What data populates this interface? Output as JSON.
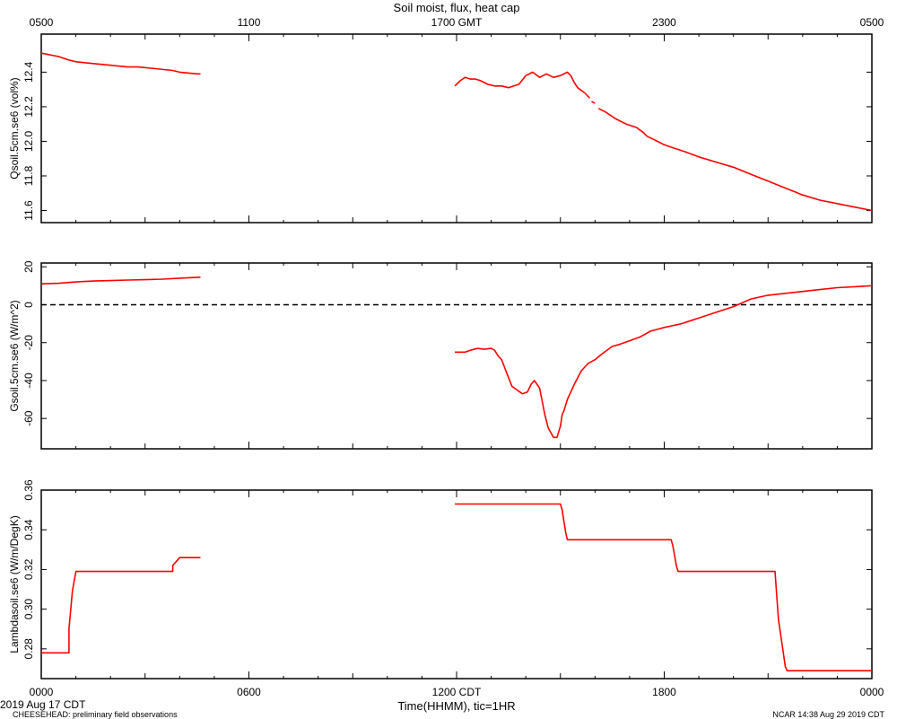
{
  "title": "Soil moist, flux, heat cap",
  "top_axis": {
    "ticks": [
      {
        "hour": 0,
        "label": "0500"
      },
      {
        "hour": 6,
        "label": "1100"
      },
      {
        "hour": 12,
        "label": "1700 GMT"
      },
      {
        "hour": 18,
        "label": "2300"
      },
      {
        "hour": 24,
        "label": "0500"
      }
    ]
  },
  "bottom_axis": {
    "ticks": [
      {
        "hour": 0,
        "label": "0000"
      },
      {
        "hour": 6,
        "label": "0600"
      },
      {
        "hour": 12,
        "label": "1200 CDT"
      },
      {
        "hour": 18,
        "label": "1800"
      },
      {
        "hour": 24,
        "label": "0000"
      }
    ],
    "xlabel": "Time(HHMM), tic=1HR",
    "date_label": "2019 Aug 17 CDT"
  },
  "footer": {
    "left": "CHEESEHEAD: preliminary field observations",
    "right": "NCAR 14:38 Aug 29 2019 CDT"
  },
  "colors": {
    "series": "#ff0000",
    "axis": "#000000",
    "zero_line": "#000000"
  },
  "chart_data": [
    {
      "type": "line",
      "ylabel": "Qsoil.5cm.se6 (vol%)",
      "xlim": [
        0,
        24
      ],
      "ylim": [
        11.53,
        12.62
      ],
      "yticks": [
        11.6,
        11.8,
        12.0,
        12.2,
        12.4
      ],
      "ytick_labels": [
        "11.6",
        "11.8",
        "12.0",
        "12.2",
        "12.4"
      ],
      "segments": [
        {
          "x": [
            0,
            0.5,
            0.8,
            1.0,
            1.5,
            2.0,
            2.5,
            2.8,
            3.3,
            3.8,
            4.0,
            4.5,
            4.6
          ],
          "y": [
            12.51,
            12.49,
            12.47,
            12.46,
            12.45,
            12.44,
            12.43,
            12.43,
            12.42,
            12.41,
            12.4,
            12.39,
            12.39
          ]
        },
        {
          "x": [
            11.95,
            12.1,
            12.25,
            12.4,
            12.55,
            12.7,
            12.9,
            13.1,
            13.3,
            13.5,
            13.65,
            13.8,
            14.0,
            14.2,
            14.4,
            14.6,
            14.8,
            15.0,
            15.1,
            15.2,
            15.3,
            15.4,
            15.5,
            15.7
          ],
          "y": [
            12.32,
            12.35,
            12.37,
            12.36,
            12.36,
            12.35,
            12.33,
            12.32,
            12.32,
            12.31,
            12.32,
            12.33,
            12.38,
            12.4,
            12.37,
            12.39,
            12.37,
            12.38,
            12.39,
            12.4,
            12.38,
            12.34,
            12.31,
            12.28
          ]
        },
        {
          "x": [
            15.7,
            15.85
          ],
          "y": [
            12.28,
            12.25
          ]
        },
        {
          "x": [
            15.9,
            16.0
          ],
          "y": [
            12.23,
            12.22
          ]
        },
        {
          "x": [
            16.1,
            16.3,
            16.6,
            16.9,
            17.2,
            17.4,
            17.5,
            17.8,
            18.0,
            18.3,
            18.6,
            19.0,
            19.5,
            20.0,
            20.5,
            21.0,
            21.5,
            22.0,
            22.5,
            23.0,
            23.5,
            24.0
          ],
          "y": [
            12.19,
            12.17,
            12.13,
            12.1,
            12.08,
            12.05,
            12.03,
            12.0,
            11.98,
            11.96,
            11.94,
            11.91,
            11.88,
            11.85,
            11.81,
            11.77,
            11.73,
            11.69,
            11.66,
            11.64,
            11.62,
            11.6
          ]
        }
      ]
    },
    {
      "type": "line",
      "ylabel": "Gsoil.5cm.se6 (W/m^2)",
      "xlim": [
        0,
        24
      ],
      "ylim": [
        -76,
        22
      ],
      "yticks": [
        -60,
        -40,
        -20,
        0,
        20
      ],
      "ytick_labels": [
        "-60",
        "-40",
        "-20",
        "0",
        "20"
      ],
      "zero_line": 0,
      "segments": [
        {
          "x": [
            0,
            0.5,
            1.0,
            1.5,
            2.0,
            2.5,
            3.0,
            3.5,
            4.0,
            4.6
          ],
          "y": [
            11,
            11.3,
            12,
            12.5,
            12.7,
            13,
            13.2,
            13.5,
            14,
            14.5
          ]
        },
        {
          "x": [
            11.95,
            12.1,
            12.25,
            12.4,
            12.6,
            12.8,
            13.0,
            13.1,
            13.2,
            13.3,
            13.45,
            13.6,
            13.75,
            13.9,
            14.05,
            14.15,
            14.25,
            14.4,
            14.55,
            14.65,
            14.8,
            14.9,
            15.0,
            15.05,
            15.1,
            15.2,
            15.4,
            15.6,
            15.8,
            16.0,
            16.2,
            16.5,
            16.7,
            17.0,
            17.3,
            17.6,
            17.8,
            18.0,
            18.5,
            19.0,
            19.5,
            20.0,
            20.5,
            21.0,
            21.5,
            22.0,
            22.5,
            23.0,
            23.5,
            24.0
          ],
          "y": [
            -25,
            -25,
            -25,
            -24,
            -23,
            -23.5,
            -23,
            -24,
            -27,
            -29,
            -36,
            -43,
            -45,
            -47,
            -46,
            -42,
            -40,
            -44,
            -58,
            -65,
            -70,
            -70,
            -64,
            -58,
            -56,
            -50,
            -42,
            -35,
            -31,
            -29,
            -26,
            -22,
            -21,
            -19,
            -17,
            -14,
            -13,
            -12,
            -10,
            -7,
            -4,
            -1,
            3,
            5,
            6,
            7,
            8,
            9,
            9.5,
            10
          ]
        }
      ]
    },
    {
      "type": "line",
      "ylabel": "Lambdasoil.se6 (W/m/DegK)",
      "xlim": [
        0,
        24
      ],
      "ylim": [
        0.265,
        0.36
      ],
      "yticks": [
        0.28,
        0.3,
        0.32,
        0.34,
        0.36
      ],
      "ytick_labels": [
        "0.28",
        "0.30",
        "0.32",
        "0.34",
        "0.36"
      ],
      "segments": [
        {
          "x": [
            0,
            0.8,
            0.8,
            0.9,
            1.0,
            1.05,
            3.8,
            3.8,
            4.0,
            4.6
          ],
          "y": [
            0.278,
            0.278,
            0.29,
            0.309,
            0.319,
            0.319,
            0.319,
            0.322,
            0.326,
            0.326
          ]
        },
        {
          "x": [
            11.95,
            15.0,
            15.05,
            15.15,
            15.2,
            18.2,
            18.25,
            18.35,
            18.4,
            21.2,
            21.3,
            21.5,
            21.55,
            24.0
          ],
          "y": [
            0.353,
            0.353,
            0.35,
            0.339,
            0.335,
            0.335,
            0.332,
            0.322,
            0.319,
            0.319,
            0.295,
            0.271,
            0.269,
            0.269
          ]
        }
      ]
    }
  ]
}
